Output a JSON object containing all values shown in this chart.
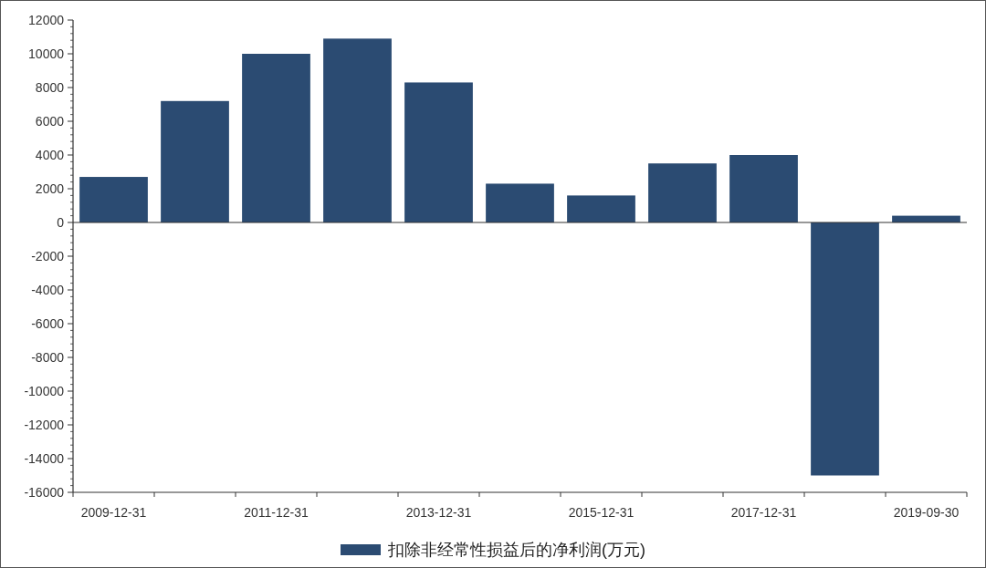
{
  "chart_data": {
    "type": "bar",
    "categories": [
      "2009-12-31",
      null,
      "2011-12-31",
      null,
      "2013-12-31",
      null,
      "2015-12-31",
      null,
      "2017-12-31",
      null,
      "2019-09-30"
    ],
    "series": [
      {
        "name": "扣除非经常性损益后的净利润(万元)",
        "color": "#2b4b72",
        "values": [
          2700,
          7200,
          10000,
          10900,
          8300,
          2300,
          1600,
          3500,
          4000,
          -15000,
          400
        ]
      }
    ],
    "ylim": [
      -16000,
      12000
    ],
    "yticks": [
      -16000,
      -14000,
      -12000,
      -10000,
      -8000,
      -6000,
      -4000,
      -2000,
      0,
      2000,
      4000,
      6000,
      8000,
      10000,
      12000
    ],
    "legend": "bottom"
  }
}
